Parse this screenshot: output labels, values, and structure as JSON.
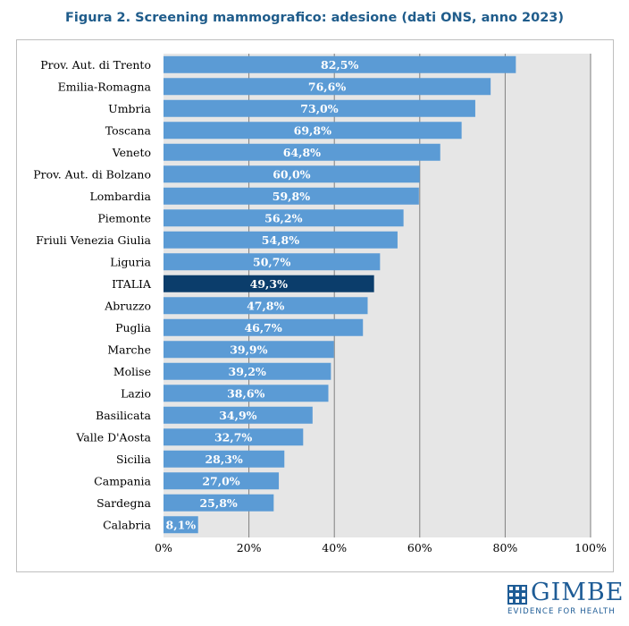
{
  "title": "Figura 2. Screening mammografico: adesione (dati ONS, anno 2023)",
  "logo": {
    "name": "GIMBE",
    "tagline": "EVIDENCE FOR HEALTH"
  },
  "colors": {
    "bar": "#5b9bd5",
    "highlight_bar": "#0b3d6b",
    "plot_background": "#e6e6e6",
    "gridline": "#7f7f7f",
    "title": "#1f5c8b",
    "label_text": "#ffffff"
  },
  "chart_data": {
    "type": "bar",
    "orientation": "horizontal",
    "title": "Figura 2. Screening mammografico: adesione (dati ONS, anno 2023)",
    "xlabel": "",
    "ylabel": "",
    "xlim": [
      0,
      100
    ],
    "x_ticks": [
      "0%",
      "20%",
      "40%",
      "60%",
      "80%",
      "100%"
    ],
    "x_tick_values": [
      0,
      20,
      40,
      60,
      80,
      100
    ],
    "grid": true,
    "legend": "none",
    "highlight_category": "ITALIA",
    "categories": [
      "Prov. Aut. di Trento",
      "Emilia-Romagna",
      "Umbria",
      "Toscana",
      "Veneto",
      "Prov. Aut. di Bolzano",
      "Lombardia",
      "Piemonte",
      "Friuli Venezia Giulia",
      "Liguria",
      "ITALIA",
      "Abruzzo",
      "Puglia",
      "Marche",
      "Molise",
      "Lazio",
      "Basilicata",
      "Valle D'Aosta",
      "Sicilia",
      "Campania",
      "Sardegna",
      "Calabria"
    ],
    "values": [
      82.5,
      76.6,
      73.0,
      69.8,
      64.8,
      60.0,
      59.8,
      56.2,
      54.8,
      50.7,
      49.3,
      47.8,
      46.7,
      39.9,
      39.2,
      38.6,
      34.9,
      32.7,
      28.3,
      27.0,
      25.8,
      8.1
    ],
    "data_labels": [
      "82,5%",
      "76,6%",
      "73,0%",
      "69,8%",
      "64,8%",
      "60,0%",
      "59,8%",
      "56,2%",
      "54,8%",
      "50,7%",
      "49,3%",
      "47,8%",
      "46,7%",
      "39,9%",
      "39,2%",
      "38,6%",
      "34,9%",
      "32,7%",
      "28,3%",
      "27,0%",
      "25,8%",
      "8,1%"
    ]
  }
}
